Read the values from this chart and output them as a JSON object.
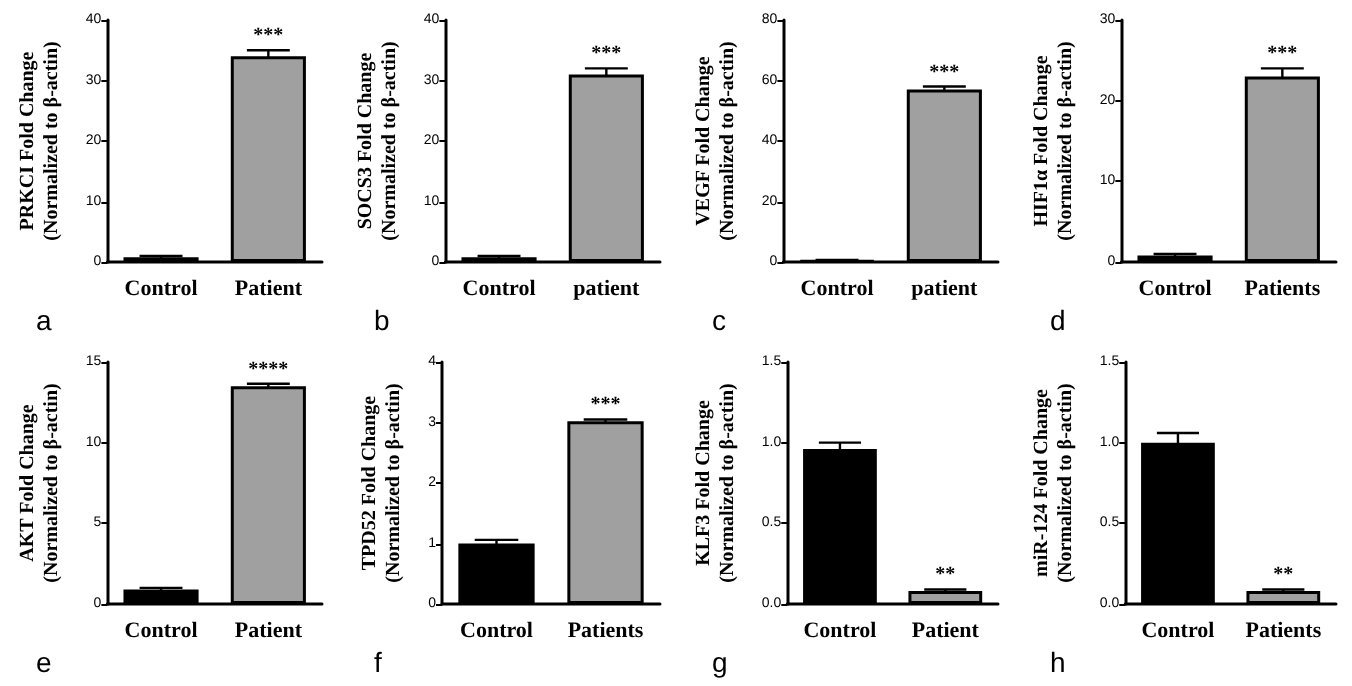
{
  "chart_data": [
    {
      "type": "bar",
      "ylabel": "PRKCI Fold Change\n(Normalized to β-actin)",
      "categories": [
        "Control",
        "Patient"
      ],
      "values": [
        0.8,
        34
      ],
      "errors": [
        0.2,
        1
      ],
      "colors": [
        "#000000",
        "#a0a0a0"
      ],
      "ylim": [
        0,
        40
      ],
      "yticks": [
        0,
        10,
        20,
        30,
        40
      ],
      "annotations": [
        {
          "text": "***",
          "x": "Patient",
          "y": 35
        },
        "a"
      ]
    },
    {
      "type": "bar",
      "ylabel": "SOCS3 Fold Change\n(Normalized to β-actin)",
      "categories": [
        "Control",
        "patient"
      ],
      "values": [
        0.8,
        31
      ],
      "errors": [
        0.2,
        1
      ],
      "colors": [
        "#000000",
        "#a0a0a0"
      ],
      "ylim": [
        0,
        40
      ],
      "yticks": [
        0,
        10,
        20,
        30,
        40
      ],
      "annotations": [
        {
          "text": "***",
          "x": "patient",
          "y": 32
        },
        "b"
      ]
    },
    {
      "type": "bar",
      "ylabel": "VEGF Fold Change\n(Normalized to β-actin)",
      "categories": [
        "Control",
        "patient"
      ],
      "values": [
        0.5,
        57
      ],
      "errors": [
        0.2,
        1
      ],
      "colors": [
        "#000000",
        "#a0a0a0"
      ],
      "ylim": [
        0,
        80
      ],
      "yticks": [
        0,
        20,
        40,
        60,
        80
      ],
      "annotations": [
        {
          "text": "***",
          "x": "patient",
          "y": 58
        },
        "c"
      ]
    },
    {
      "type": "bar",
      "ylabel": "HIF1α Fold Change\n(Normalized to β-actin)",
      "categories": [
        "Control",
        "Patients"
      ],
      "values": [
        0.8,
        23
      ],
      "errors": [
        0.2,
        1
      ],
      "colors": [
        "#000000",
        "#a0a0a0"
      ],
      "ylim": [
        0,
        30
      ],
      "yticks": [
        0,
        10,
        20,
        30
      ],
      "annotations": [
        {
          "text": "***",
          "x": "Patients",
          "y": 24
        },
        "d"
      ]
    },
    {
      "type": "bar",
      "ylabel": "AKT Fold Change\n(Normalized to β-actin)",
      "categories": [
        "Control",
        "Patient"
      ],
      "values": [
        0.9,
        13.5
      ],
      "errors": [
        0.1,
        0.15
      ],
      "colors": [
        "#000000",
        "#a0a0a0"
      ],
      "ylim": [
        0,
        15
      ],
      "yticks": [
        0,
        5,
        10,
        15
      ],
      "annotations": [
        {
          "text": "****",
          "x": "Patient",
          "y": 13.65
        },
        "e"
      ]
    },
    {
      "type": "bar",
      "ylabel": "TPD52 Fold Change\n(Normalized to β-actin)",
      "categories": [
        "Control",
        "Patients"
      ],
      "values": [
        1.0,
        3.02
      ],
      "errors": [
        0.06,
        0.03
      ],
      "colors": [
        "#000000",
        "#a0a0a0"
      ],
      "ylim": [
        0,
        4
      ],
      "yticks": [
        0,
        1,
        2,
        3,
        4
      ],
      "annotations": [
        {
          "text": "***",
          "x": "Patients",
          "y": 3.05
        },
        "f"
      ]
    },
    {
      "type": "bar",
      "ylabel": "KLF3 Fold Change\n(Normalized to β-actin)",
      "categories": [
        "Control",
        "Patient"
      ],
      "values": [
        0.96,
        0.08
      ],
      "errors": [
        0.04,
        0.01
      ],
      "colors": [
        "#000000",
        "#a0a0a0"
      ],
      "ylim": [
        0,
        1.5
      ],
      "yticks": [
        {
          "value": 0,
          "label": "0.0"
        },
        {
          "value": 0.5,
          "label": "0.5"
        },
        {
          "value": 1,
          "label": "1.0"
        },
        {
          "value": 1.5,
          "label": "1.5"
        }
      ],
      "annotations": [
        {
          "text": "**",
          "x": "Patient",
          "y": 0.09
        },
        "g"
      ]
    },
    {
      "type": "bar",
      "ylabel": "miR-124 Fold Change\n(Normalized to β-actin)",
      "categories": [
        "Control",
        "Patients"
      ],
      "values": [
        1.0,
        0.08
      ],
      "errors": [
        0.06,
        0.01
      ],
      "colors": [
        "#000000",
        "#a0a0a0"
      ],
      "ylim": [
        0,
        1.5
      ],
      "yticks": [
        {
          "value": 0,
          "label": "0.0"
        },
        {
          "value": 0.5,
          "label": "0.5"
        },
        {
          "value": 1,
          "label": "1.0"
        },
        {
          "value": 1.5,
          "label": "1.5"
        }
      ],
      "annotations": [
        {
          "text": "**",
          "x": "Patients",
          "y": 0.09
        },
        "h"
      ]
    }
  ]
}
